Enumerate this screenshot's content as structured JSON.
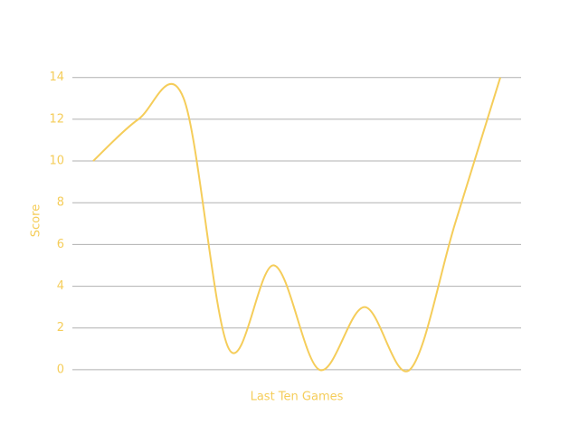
{
  "chart_data": {
    "type": "line",
    "xlabel": "Last Ten Games",
    "ylabel": "Score",
    "categories": [
      null,
      null,
      null,
      null,
      null,
      null,
      null,
      null,
      null,
      null
    ],
    "series": [
      {
        "name": "Score",
        "color": "#f5cd5a",
        "values": [
          10,
          12,
          13,
          1,
          5,
          0,
          3,
          0,
          7,
          14
        ]
      }
    ],
    "ylim": [
      -1,
      15.2
    ],
    "yticks": [
      0,
      2,
      4,
      6,
      8,
      10,
      12,
      14
    ],
    "grid": true,
    "smooth": true
  }
}
